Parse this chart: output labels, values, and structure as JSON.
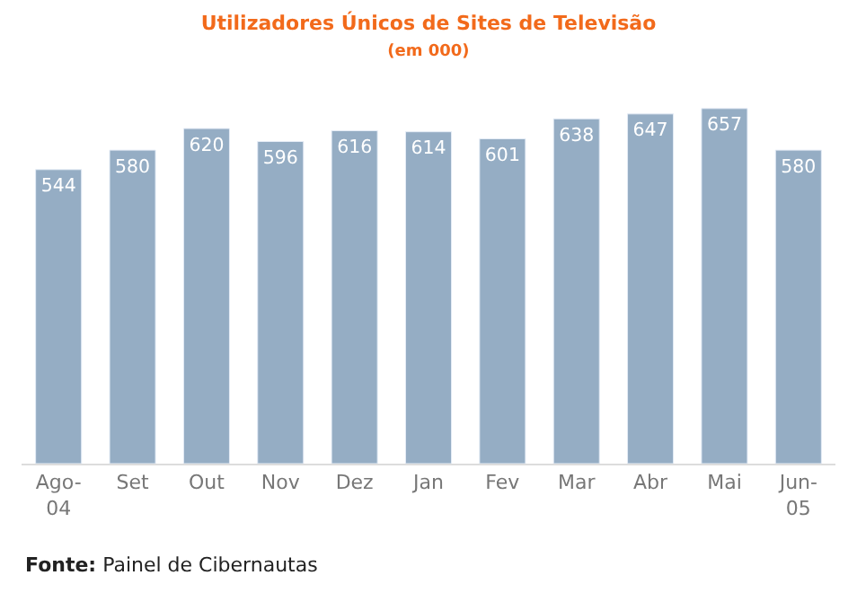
{
  "chart_data": {
    "type": "bar",
    "title": "Utilizadores Únicos de Sites de Televisão",
    "subtitle": "(em 000)",
    "categories": [
      "Ago-\n04",
      "Set",
      "Out",
      "Nov",
      "Dez",
      "Jan",
      "Fev",
      "Mar",
      "Abr",
      "Mai",
      "Jun-\n05"
    ],
    "values": [
      544,
      580,
      620,
      596,
      616,
      614,
      601,
      638,
      647,
      657,
      580
    ],
    "color": "#95adc4",
    "data_labels": true,
    "annotations": [
      "Fonte: Painel de Cibernautas"
    ]
  }
}
